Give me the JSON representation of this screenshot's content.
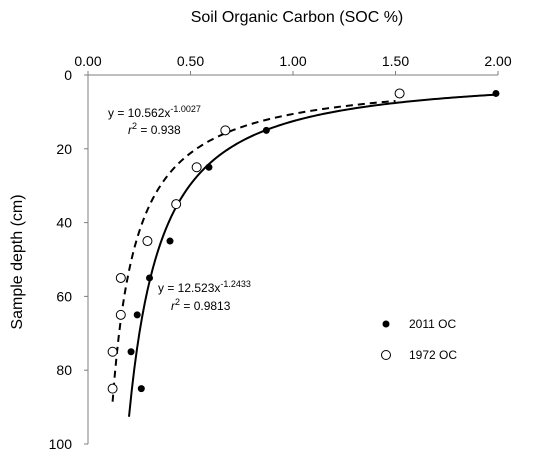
{
  "chart_data": {
    "type": "scatter",
    "xlabel": "Soil Organic Carbon (SOC %)",
    "ylabel": "Sample depth (cm)",
    "xlim": [
      0,
      2
    ],
    "ylim": [
      0,
      100
    ],
    "x_axis_position": "top",
    "y_axis_reversed": true,
    "x_ticks": [
      "0.00",
      "0.50",
      "1.00",
      "1.50",
      "2.00"
    ],
    "y_ticks": [
      "0",
      "20",
      "40",
      "60",
      "80",
      "100"
    ],
    "grid": false,
    "legend_position": "right",
    "series": [
      {
        "name": "2011 OC",
        "marker": "filled-circle",
        "color": "#000000",
        "points": [
          {
            "x": 1.99,
            "y": 5
          },
          {
            "x": 0.87,
            "y": 15
          },
          {
            "x": 0.59,
            "y": 25
          },
          {
            "x": 0.4,
            "y": 45
          },
          {
            "x": 0.3,
            "y": 55
          },
          {
            "x": 0.24,
            "y": 65
          },
          {
            "x": 0.21,
            "y": 75
          },
          {
            "x": 0.26,
            "y": 85
          }
        ],
        "fit": {
          "equation_prefix": "y = 12.523x",
          "exponent_text": "-1.2433",
          "r2_prefix": "r",
          "r2_sup": "2",
          "r2_value": " = 0.9813",
          "a": 12.523,
          "b": -1.2433,
          "line_style": "solid",
          "x_range": [
            0.2,
            2.0
          ]
        }
      },
      {
        "name": "1972 OC",
        "marker": "open-circle",
        "color": "#000000",
        "points": [
          {
            "x": 1.52,
            "y": 5
          },
          {
            "x": 0.67,
            "y": 15
          },
          {
            "x": 0.53,
            "y": 25
          },
          {
            "x": 0.43,
            "y": 35
          },
          {
            "x": 0.29,
            "y": 45
          },
          {
            "x": 0.16,
            "y": 55
          },
          {
            "x": 0.16,
            "y": 65
          },
          {
            "x": 0.12,
            "y": 75
          },
          {
            "x": 0.12,
            "y": 85
          }
        ],
        "fit": {
          "equation_prefix": "y = 10.562x",
          "exponent_text": "-1.0027",
          "r2_prefix": "r",
          "r2_sup": "2",
          "r2_value": " = 0.938",
          "a": 10.562,
          "b": -1.0027,
          "line_style": "dashed",
          "x_range": [
            0.12,
            1.5
          ]
        }
      }
    ]
  }
}
